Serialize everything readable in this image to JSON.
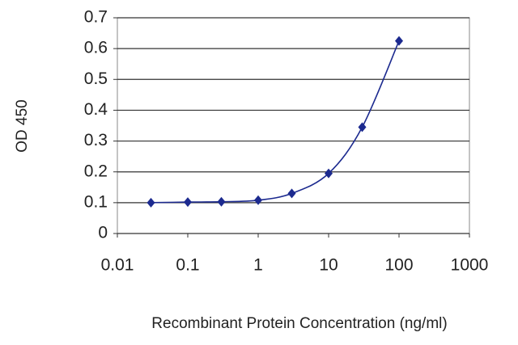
{
  "chart_data": {
    "type": "line",
    "xlabel": "Recombinant Protein Concentration (ng/ml)",
    "ylabel": "OD 450",
    "x": [
      0.03,
      0.1,
      0.3,
      1,
      3,
      10,
      30,
      100
    ],
    "series": [
      {
        "color": "#1c2a8f",
        "values": [
          0.1,
          0.102,
          0.103,
          0.108,
          0.13,
          0.195,
          0.345,
          0.625
        ]
      }
    ],
    "xscale": "log",
    "xlim": [
      0.01,
      1000
    ],
    "xticks": [
      0.01,
      0.1,
      1,
      10,
      100,
      1000
    ],
    "ylim": [
      0,
      0.7
    ],
    "yticks": [
      0,
      0.1,
      0.2,
      0.3,
      0.4,
      0.5,
      0.6,
      0.7
    ],
    "grid": true
  }
}
